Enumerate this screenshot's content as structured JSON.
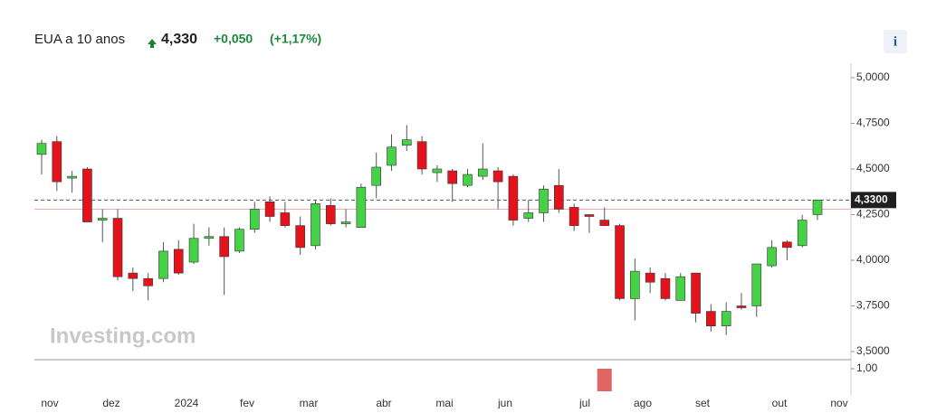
{
  "header": {
    "name": "EUA a 10 anos",
    "price": "4,330",
    "change": "+0,050",
    "change_pct": "(+1,17%)"
  },
  "chart_data": {
    "type": "candlestick",
    "watermark": "Investing.com",
    "up_color": "#46d246",
    "down_color": "#e3131b",
    "open": [
      4.58,
      4.65,
      4.45,
      4.5,
      4.22,
      4.23,
      3.93,
      3.9,
      3.9,
      4.06,
      3.99,
      4.12,
      4.13,
      4.05,
      4.17,
      4.32,
      4.26,
      4.19,
      4.08,
      4.3,
      4.2,
      4.18,
      4.41,
      4.52,
      4.63,
      4.65,
      4.48,
      4.49,
      4.41,
      4.46,
      4.49,
      4.46,
      4.23,
      4.26,
      4.41,
      4.29,
      4.25,
      4.22,
      4.19,
      3.79,
      3.93,
      3.9,
      3.78,
      3.93,
      3.72,
      3.64,
      3.75,
      3.75,
      3.97,
      4.1,
      4.08,
      4.25
    ],
    "high": [
      4.66,
      4.68,
      4.49,
      4.51,
      4.28,
      4.28,
      3.96,
      3.93,
      4.1,
      4.11,
      4.2,
      4.18,
      4.18,
      4.18,
      4.32,
      4.35,
      4.32,
      4.24,
      4.33,
      4.34,
      4.28,
      4.42,
      4.59,
      4.69,
      4.74,
      4.68,
      4.52,
      4.5,
      4.5,
      4.64,
      4.51,
      4.47,
      4.33,
      4.41,
      4.5,
      4.31,
      4.25,
      4.29,
      4.2,
      4.01,
      3.96,
      3.93,
      3.93,
      3.93,
      3.76,
      3.77,
      3.82,
      3.98,
      4.11,
      4.11,
      4.25,
      4.33
    ],
    "low": [
      4.47,
      4.38,
      4.37,
      4.21,
      4.1,
      3.89,
      3.83,
      3.78,
      3.88,
      3.92,
      3.98,
      4.08,
      3.81,
      4.04,
      4.15,
      4.21,
      4.18,
      4.03,
      4.06,
      4.19,
      4.18,
      4.18,
      4.34,
      4.49,
      4.6,
      4.47,
      4.43,
      4.32,
      4.4,
      4.44,
      4.28,
      4.19,
      4.21,
      4.21,
      4.26,
      4.16,
      4.15,
      4.19,
      3.78,
      3.67,
      3.82,
      3.78,
      3.78,
      3.66,
      3.61,
      3.59,
      3.73,
      3.69,
      3.96,
      4.0,
      4.07,
      4.22
    ],
    "close": [
      4.64,
      4.43,
      4.46,
      4.21,
      4.23,
      3.91,
      3.9,
      3.86,
      4.05,
      3.93,
      4.12,
      4.13,
      4.02,
      4.17,
      4.28,
      4.24,
      4.19,
      4.07,
      4.31,
      4.2,
      4.21,
      4.4,
      4.51,
      4.62,
      4.66,
      4.5,
      4.5,
      4.42,
      4.47,
      4.5,
      4.43,
      4.22,
      4.26,
      4.39,
      4.28,
      4.19,
      4.24,
      4.19,
      3.79,
      3.94,
      3.88,
      3.79,
      3.91,
      3.71,
      3.64,
      3.72,
      3.74,
      3.98,
      4.07,
      4.07,
      4.22,
      4.33
    ],
    "volume": [
      null,
      null,
      null,
      null,
      null,
      null,
      null,
      null,
      null,
      null,
      null,
      null,
      null,
      null,
      null,
      null,
      null,
      null,
      null,
      null,
      null,
      null,
      null,
      null,
      null,
      null,
      null,
      null,
      null,
      null,
      null,
      null,
      null,
      null,
      null,
      null,
      null,
      1,
      null,
      null,
      null,
      null,
      null,
      null,
      null,
      null,
      null,
      null,
      null,
      null,
      null,
      null
    ],
    "volume_color": "#e06666",
    "last": {
      "value": 4.33,
      "label": "4,3300"
    },
    "previous_close": 4.28,
    "x_labels": [
      "nov",
      "dez",
      "2024",
      "fev",
      "mar",
      "abr",
      "mai",
      "jun",
      "jul",
      "ago",
      "set",
      "out",
      "nov"
    ],
    "ylim": [
      3.5,
      5.0
    ],
    "yticks": [
      {
        "value": 3.5,
        "label": "3,5000"
      },
      {
        "value": 3.75,
        "label": "3,7500"
      },
      {
        "value": 4.0,
        "label": "4,0000"
      },
      {
        "value": 4.25,
        "label": "4,2500"
      },
      {
        "value": 4.5,
        "label": "4,5000"
      },
      {
        "value": 4.75,
        "label": "4,7500"
      },
      {
        "value": 5.0,
        "label": "5,0000"
      }
    ],
    "vlim": [
      0,
      1
    ],
    "vticks": [
      {
        "value": 1,
        "label": "1,00"
      }
    ]
  }
}
